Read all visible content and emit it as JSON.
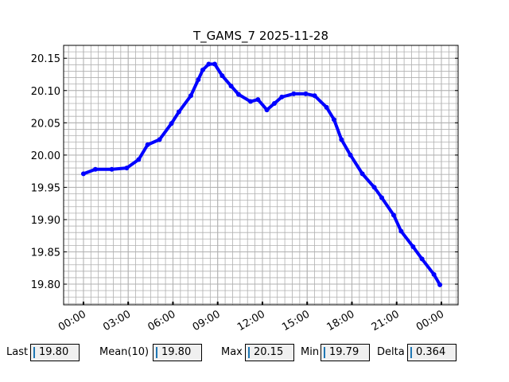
{
  "chart_data": {
    "type": "scatter",
    "title": "T_GAMS_7 2025-11-28",
    "x": [
      0,
      0.8,
      1.9,
      2.9,
      3.7,
      4.3,
      5.1,
      5.9,
      6.4,
      7.2,
      7.7,
      8.0,
      8.4,
      8.8,
      9.3,
      9.9,
      10.4,
      11.2,
      11.7,
      12.3,
      12.8,
      13.3,
      14.1,
      14.9,
      15.5,
      16.3,
      16.8,
      17.3,
      17.9,
      18.7,
      19.5,
      20.0,
      20.8,
      21.3,
      22.1,
      22.7,
      23.5,
      23.9
    ],
    "series": [
      {
        "name": "T_GAMS_7",
        "color": "#0000ff",
        "values": [
          19.971,
          19.978,
          19.978,
          19.98,
          19.993,
          20.016,
          20.024,
          20.049,
          20.067,
          20.092,
          20.117,
          20.132,
          20.141,
          20.141,
          20.123,
          20.107,
          20.094,
          20.083,
          20.086,
          20.07,
          20.08,
          20.09,
          20.095,
          20.095,
          20.092,
          20.074,
          20.055,
          20.024,
          20.0,
          19.971,
          19.95,
          19.934,
          19.907,
          19.882,
          19.858,
          19.839,
          19.815,
          19.799
        ]
      }
    ],
    "xlim": [
      -1.33,
      25.12
    ],
    "xticks": [
      {
        "value": 0,
        "label": "00:00"
      },
      {
        "value": 3,
        "label": "03:00"
      },
      {
        "value": 6,
        "label": "06:00"
      },
      {
        "value": 9,
        "label": "09:00"
      },
      {
        "value": 12,
        "label": "12:00"
      },
      {
        "value": 15,
        "label": "15:00"
      },
      {
        "value": 18,
        "label": "18:00"
      },
      {
        "value": 21,
        "label": "21:00"
      },
      {
        "value": 24,
        "label": "00:00"
      }
    ],
    "ylim": [
      19.768,
      20.17
    ],
    "yticks": [
      {
        "value": 19.8,
        "label": "19.80"
      },
      19.85,
      {
        "value": 19.9,
        "label": "19.90"
      },
      19.95,
      {
        "value": 20.0,
        "label": "20.00"
      },
      20.05,
      {
        "value": 20.1,
        "label": "20.10"
      },
      20.15
    ],
    "grid": true,
    "minor_grid": {
      "x_step": 0.5,
      "y_step": 0.01
    }
  },
  "controls": [
    {
      "label": "Last",
      "value": "19.80"
    },
    {
      "label": "Mean(10)",
      "value": "19.80"
    },
    {
      "label": "Max",
      "value": "20.15"
    },
    {
      "label": "Min",
      "value": "19.79"
    },
    {
      "label": "Delta",
      "value": "0.364"
    }
  ]
}
